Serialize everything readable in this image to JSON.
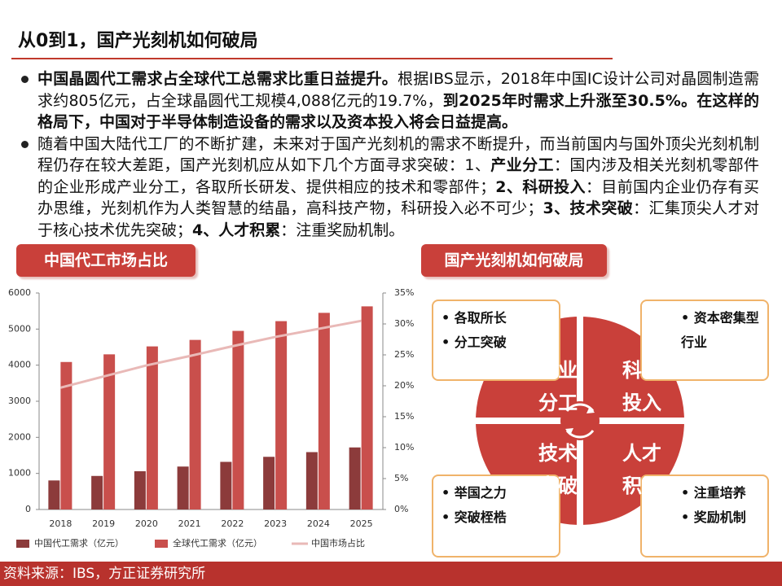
{
  "header": {
    "title": "从0到1，国产光刻机如何破局"
  },
  "bullets": [
    [
      {
        "text": "中国晶圆代工需求占全球代工总需求比重日益提升。",
        "bold": true
      },
      {
        "text": "根据IBS显示，2018年中国IC设计公司对晶圆制造需求约805亿元，占全球晶圆代工规模4,088亿元的19.7%，",
        "bold": false
      },
      {
        "text": "到2025年时需求上升涨至30.5%。在这样的格局下，中国对于半导体制造设备的需求以及资本投入将会日益提高。",
        "bold": true
      }
    ],
    [
      {
        "text": "随着中国大陆代工厂的不断扩建，未来对于国产光刻机的需求不断提升，而当前国内与国外顶尖光刻机制程仍存在较大差距，国产光刻机应从如下几个方面寻求突破：1、",
        "bold": false
      },
      {
        "text": "产业分工",
        "bold": true
      },
      {
        "text": "：国内涉及相关光刻机零部件的企业形成产业分工，各取所长研发、提供相应的技术和零部件；",
        "bold": false
      },
      {
        "text": "2、科研投入",
        "bold": true
      },
      {
        "text": "：目前国内企业仍存有买办思维，光刻机作为人类智慧的结晶，高科技产物，科研投入必不可少；",
        "bold": false
      },
      {
        "text": "3、技术突破",
        "bold": true
      },
      {
        "text": "：汇集顶尖人才对于核心技术优先突破；",
        "bold": false
      },
      {
        "text": "4、人才积累",
        "bold": true
      },
      {
        "text": "：注重奖励机制。",
        "bold": false
      }
    ]
  ],
  "chart_section": {
    "title": "中国代工市场占比"
  },
  "chart_data": {
    "type": "bar",
    "categories": [
      "2018",
      "2019",
      "2020",
      "2021",
      "2022",
      "2023",
      "2024",
      "2025"
    ],
    "series": [
      {
        "name": "中国代工需求（亿元）",
        "color": "#8c3b3b",
        "values": [
          805,
          930,
          1060,
          1190,
          1320,
          1460,
          1590,
          1720
        ]
      },
      {
        "name": "全球代工需求（亿元）",
        "color": "#c94f4c",
        "values": [
          4088,
          4300,
          4520,
          4700,
          4950,
          5220,
          5450,
          5630
        ]
      },
      {
        "name": "中国市场占比",
        "color": "#e9b9b7",
        "type": "line",
        "axis": "y2",
        "values": [
          19.7,
          21.5,
          23.3,
          24.8,
          26.4,
          27.9,
          29.2,
          30.5
        ]
      }
    ],
    "ylim": [
      0,
      6000
    ],
    "yticks": [
      0,
      1000,
      2000,
      3000,
      4000,
      5000,
      6000
    ],
    "y2lim": [
      0,
      35
    ],
    "y2ticks": [
      {
        "value": 0,
        "label": "0%"
      },
      {
        "value": 5,
        "label": "5%"
      },
      {
        "value": 10,
        "label": "10%"
      },
      {
        "value": 15,
        "label": "15%"
      },
      {
        "value": 20,
        "label": "20%"
      },
      {
        "value": 25,
        "label": "25%"
      },
      {
        "value": 30,
        "label": "30%"
      },
      {
        "value": 35,
        "label": "35%"
      }
    ],
    "legend": "bottom"
  },
  "diagram": {
    "title": "国产光刻机如何破局",
    "quadrants": [
      {
        "label": [
          "产业",
          "分工"
        ],
        "items": [
          "各取所长",
          "分工突破"
        ]
      },
      {
        "label": [
          "科研",
          "投入"
        ],
        "items": [
          "资本密集型行业"
        ]
      },
      {
        "label": [
          "技术",
          "突破"
        ],
        "items": [
          "举国之力",
          "突破桎梏"
        ]
      },
      {
        "label": [
          "人才",
          "积累"
        ],
        "items": [
          "注重培养",
          "奖励机制"
        ]
      }
    ]
  },
  "footer": {
    "source": "资料来源：IBS，方正证券研究所"
  }
}
